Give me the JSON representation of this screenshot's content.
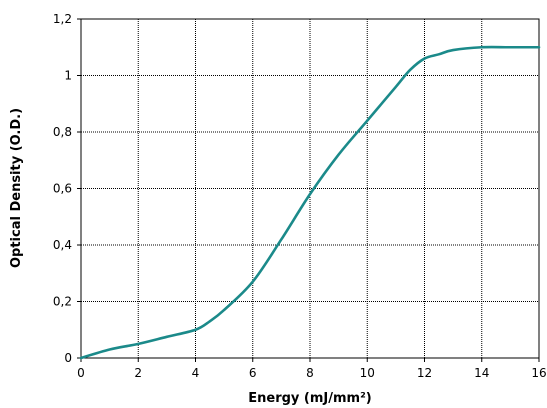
{
  "chart_data": {
    "type": "line",
    "title": "",
    "xlabel": "Energy (mJ/mm²)",
    "ylabel": "Optical Density (O.D.)",
    "xlim": [
      0,
      16
    ],
    "ylim": [
      0,
      1.2
    ],
    "x_ticks": [
      "0",
      "2",
      "4",
      "6",
      "8",
      "10",
      "12",
      "14",
      "16"
    ],
    "y_ticks": [
      "0",
      "0,2",
      "0,4",
      "0,6",
      "0,8",
      "1",
      "1,2"
    ],
    "grid": true,
    "legend": "none",
    "series": [
      {
        "color": "#1b8a8a",
        "x": [
          0,
          1,
          2,
          3,
          4,
          4.5,
          5,
          6,
          7,
          8,
          9,
          10,
          11,
          11.5,
          12,
          12.5,
          13,
          14,
          15,
          16
        ],
        "values": [
          0,
          0.03,
          0.05,
          0.075,
          0.1,
          0.13,
          0.17,
          0.27,
          0.42,
          0.58,
          0.72,
          0.84,
          0.96,
          1.02,
          1.06,
          1.075,
          1.09,
          1.1,
          1.1,
          1.1
        ]
      }
    ]
  }
}
